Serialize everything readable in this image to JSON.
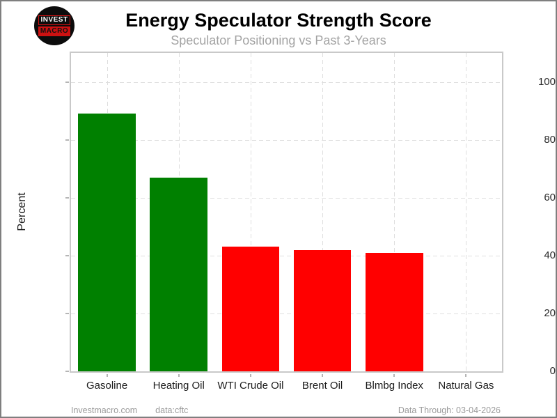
{
  "header": {
    "title": "Energy Speculator Strength Score",
    "subtitle": "Speculator Positioning vs Past 3-Years",
    "logo_line1": "INVEST",
    "logo_line2": "MACRO"
  },
  "chart_data": {
    "type": "bar",
    "title": "Energy Speculator Strength Score",
    "subtitle": "Speculator Positioning vs Past 3-Years",
    "categories": [
      "Gasoline",
      "Heating Oil",
      "WTI Crude Oil",
      "Brent Oil",
      "Blmbg Index",
      "Natural Gas"
    ],
    "values": [
      89,
      67,
      43,
      42,
      41,
      0
    ],
    "bar_colors": [
      "#008000",
      "#008000",
      "#ff0000",
      "#ff0000",
      "#ff0000",
      "#ff0000"
    ],
    "xlabel": "",
    "ylabel": "Percent",
    "ylim": [
      0,
      110
    ],
    "yticks": [
      0,
      20,
      40,
      60,
      80,
      100
    ],
    "grid": "dashed-both-axes",
    "legend_position": "none"
  },
  "footer": {
    "site": "Investmacro.com",
    "source": "data:cftc",
    "data_through": "Data Through: 03-04-2026"
  },
  "colors": {
    "positive_bar": "#008000",
    "negative_bar": "#ff0000",
    "logo_red": "#cc1111",
    "grid": "#dedede",
    "spine": "#c9c9c9",
    "frame": "#7f7f7f",
    "subtitle_text": "#a3a3a3",
    "footer_text": "#9b9b9b"
  }
}
